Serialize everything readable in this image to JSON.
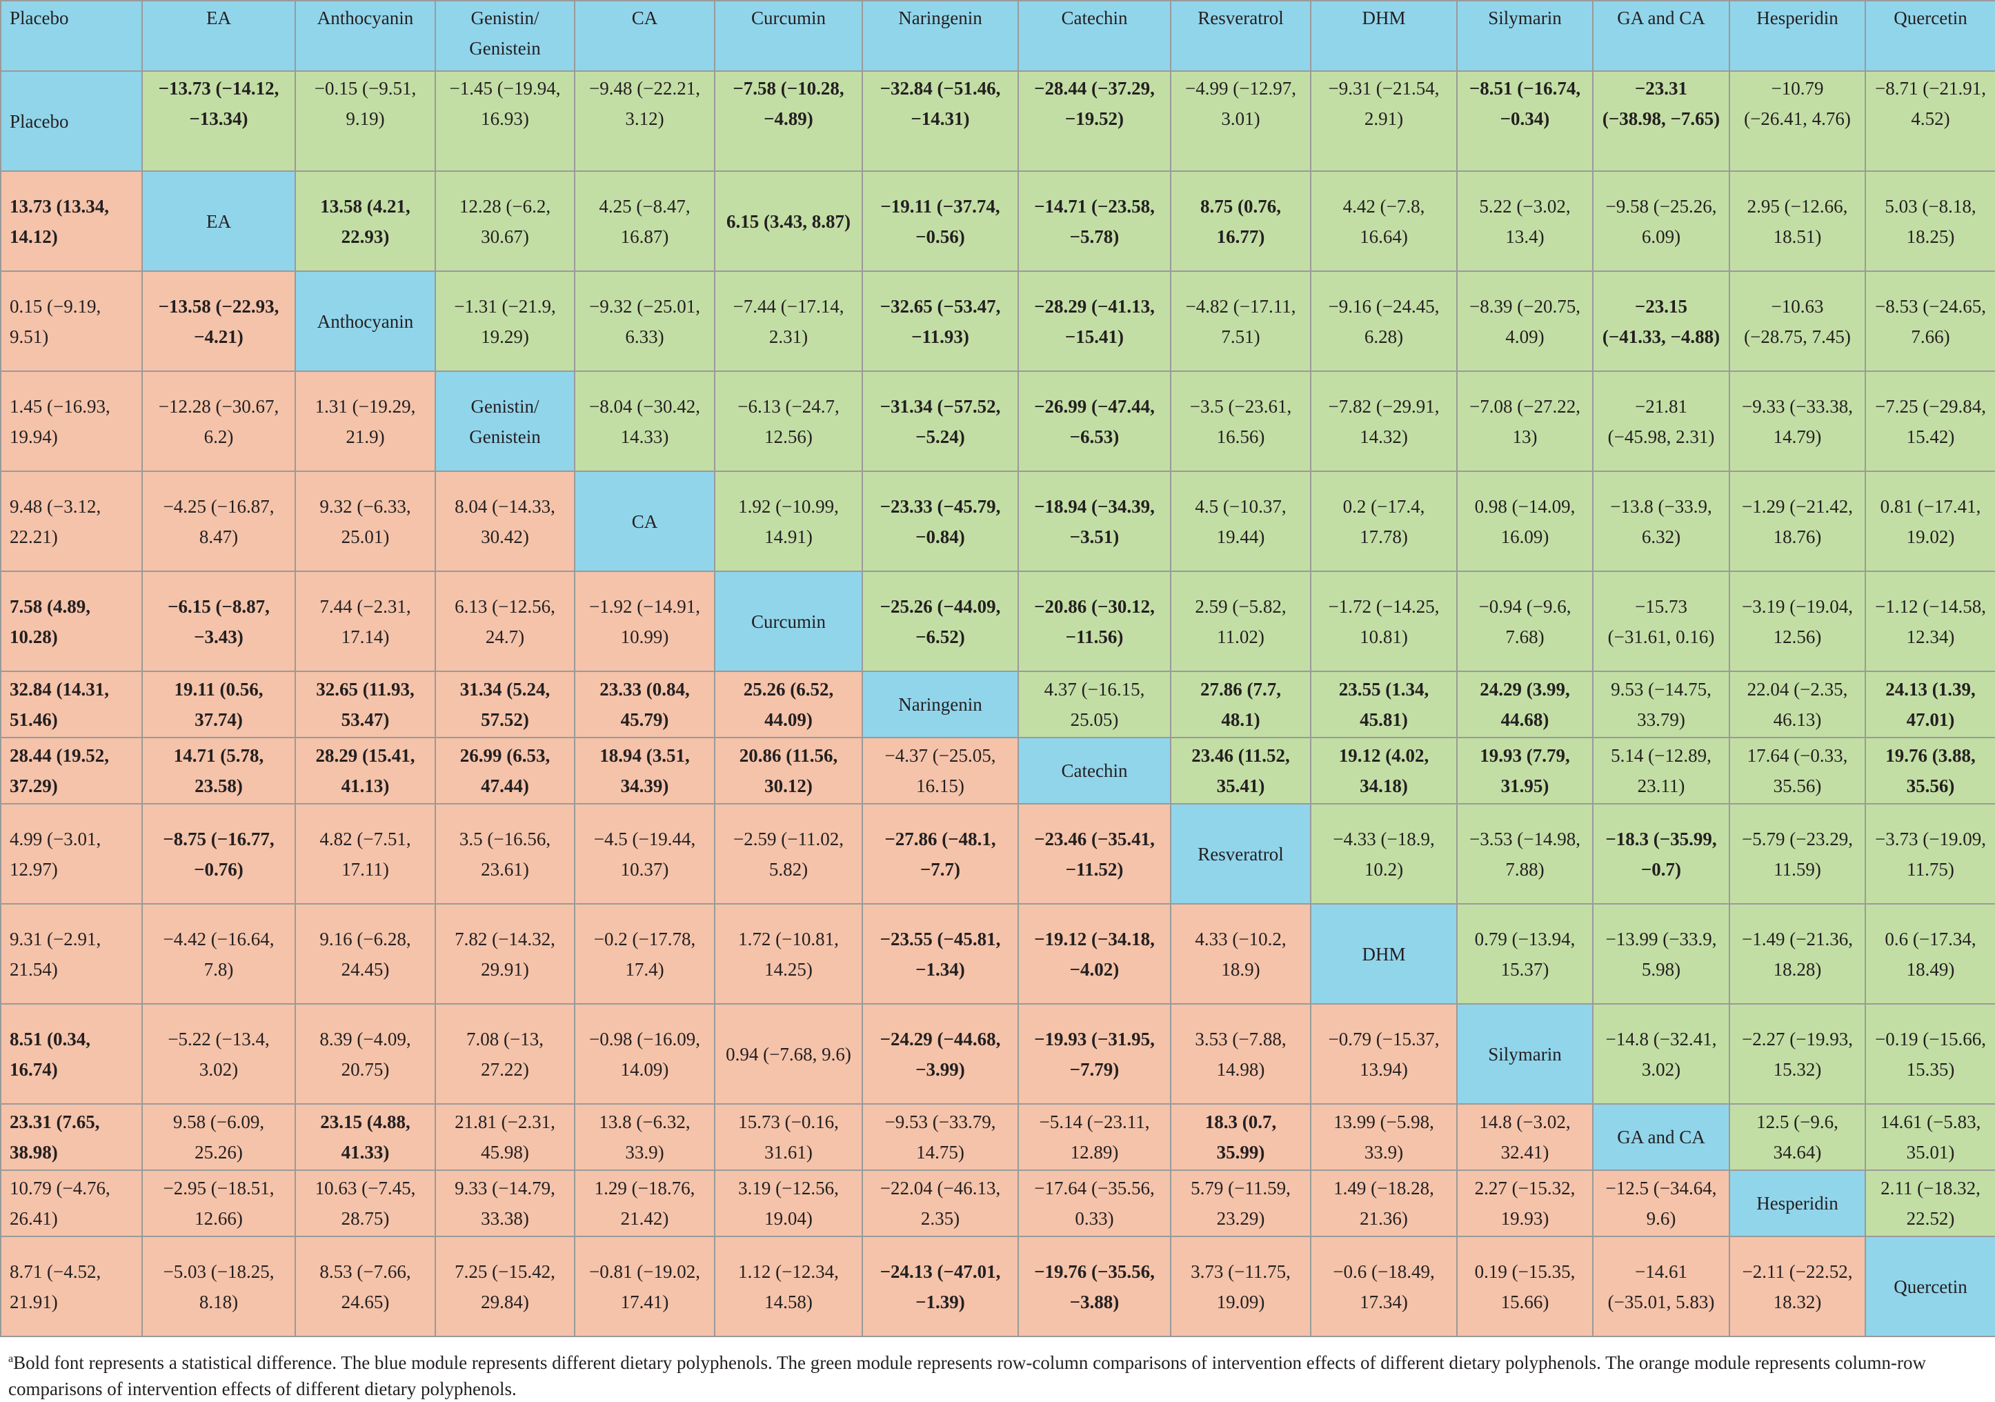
{
  "colors": {
    "diagonal": "#91d5eb",
    "upper": "#c3dea5",
    "lower": "#f4c3aa",
    "border": "#9a9a9a"
  },
  "header": [
    "Placebo",
    "EA",
    "Anthocyanin",
    "Genistin/ Genistein",
    "CA",
    "Curcumin",
    "Naringenin",
    "Catechin",
    "Resveratrol",
    "DHM",
    "Silymarin",
    "GA and CA",
    "Hesperidin",
    "Quercetin"
  ],
  "rows": [
    [
      {
        "t": "Placebo",
        "c": "blue"
      },
      {
        "t": "−13.73 (−14.12, −13.34)",
        "c": "green",
        "b": 1
      },
      {
        "t": "−0.15 (−9.51, 9.19)",
        "c": "green"
      },
      {
        "t": "−1.45 (−19.94, 16.93)",
        "c": "green"
      },
      {
        "t": "−9.48 (−22.21, 3.12)",
        "c": "green"
      },
      {
        "t": "−7.58 (−10.28, −4.89)",
        "c": "green",
        "b": 1
      },
      {
        "t": "−32.84 (−51.46, −14.31)",
        "c": "green",
        "b": 1
      },
      {
        "t": "−28.44 (−37.29, −19.52)",
        "c": "green",
        "b": 1
      },
      {
        "t": "−4.99 (−12.97, 3.01)",
        "c": "green"
      },
      {
        "t": "−9.31 (−21.54, 2.91)",
        "c": "green"
      },
      {
        "t": "−8.51 (−16.74, −0.34)",
        "c": "green",
        "b": 1
      },
      {
        "t": "−23.31 (−38.98, −7.65)",
        "c": "green",
        "b": 1
      },
      {
        "t": "−10.79 (−26.41, 4.76)",
        "c": "green"
      },
      {
        "t": "−8.71 (−21.91, 4.52)",
        "c": "green"
      }
    ],
    [
      {
        "t": "13.73 (13.34, 14.12)",
        "c": "orange",
        "b": 1
      },
      {
        "t": "EA",
        "c": "blue"
      },
      {
        "t": "13.58 (4.21, 22.93)",
        "c": "green",
        "b": 1
      },
      {
        "t": "12.28 (−6.2, 30.67)",
        "c": "green"
      },
      {
        "t": "4.25 (−8.47, 16.87)",
        "c": "green"
      },
      {
        "t": "6.15 (3.43, 8.87)",
        "c": "green",
        "b": 1
      },
      {
        "t": "−19.11 (−37.74, −0.56)",
        "c": "green",
        "b": 1
      },
      {
        "t": "−14.71 (−23.58, −5.78)",
        "c": "green",
        "b": 1
      },
      {
        "t": "8.75 (0.76, 16.77)",
        "c": "green",
        "b": 1
      },
      {
        "t": "4.42 (−7.8, 16.64)",
        "c": "green"
      },
      {
        "t": "5.22 (−3.02, 13.4)",
        "c": "green"
      },
      {
        "t": "−9.58 (−25.26, 6.09)",
        "c": "green"
      },
      {
        "t": "2.95 (−12.66, 18.51)",
        "c": "green"
      },
      {
        "t": "5.03 (−8.18, 18.25)",
        "c": "green"
      }
    ],
    [
      {
        "t": "0.15 (−9.19, 9.51)",
        "c": "orange"
      },
      {
        "t": "−13.58 (−22.93, −4.21)",
        "c": "orange",
        "b": 1
      },
      {
        "t": "Anthocyanin",
        "c": "blue"
      },
      {
        "t": "−1.31 (−21.9, 19.29)",
        "c": "green"
      },
      {
        "t": "−9.32 (−25.01, 6.33)",
        "c": "green"
      },
      {
        "t": "−7.44 (−17.14, 2.31)",
        "c": "green"
      },
      {
        "t": "−32.65 (−53.47, −11.93)",
        "c": "green",
        "b": 1
      },
      {
        "t": "−28.29 (−41.13, −15.41)",
        "c": "green",
        "b": 1
      },
      {
        "t": "−4.82 (−17.11, 7.51)",
        "c": "green"
      },
      {
        "t": "−9.16 (−24.45, 6.28)",
        "c": "green"
      },
      {
        "t": "−8.39 (−20.75, 4.09)",
        "c": "green"
      },
      {
        "t": "−23.15 (−41.33, −4.88)",
        "c": "green",
        "b": 1
      },
      {
        "t": "−10.63 (−28.75, 7.45)",
        "c": "green"
      },
      {
        "t": "−8.53 (−24.65, 7.66)",
        "c": "green"
      }
    ],
    [
      {
        "t": "1.45 (−16.93, 19.94)",
        "c": "orange"
      },
      {
        "t": "−12.28 (−30.67, 6.2)",
        "c": "orange"
      },
      {
        "t": "1.31 (−19.29, 21.9)",
        "c": "orange"
      },
      {
        "t": "Genistin/ Genistein",
        "c": "blue"
      },
      {
        "t": "−8.04 (−30.42, 14.33)",
        "c": "green"
      },
      {
        "t": "−6.13 (−24.7, 12.56)",
        "c": "green"
      },
      {
        "t": "−31.34 (−57.52, −5.24)",
        "c": "green",
        "b": 1
      },
      {
        "t": "−26.99 (−47.44, −6.53)",
        "c": "green",
        "b": 1
      },
      {
        "t": "−3.5 (−23.61, 16.56)",
        "c": "green"
      },
      {
        "t": "−7.82 (−29.91, 14.32)",
        "c": "green"
      },
      {
        "t": "−7.08 (−27.22, 13)",
        "c": "green"
      },
      {
        "t": "−21.81 (−45.98, 2.31)",
        "c": "green"
      },
      {
        "t": "−9.33 (−33.38, 14.79)",
        "c": "green"
      },
      {
        "t": "−7.25 (−29.84, 15.42)",
        "c": "green"
      }
    ],
    [
      {
        "t": "9.48 (−3.12, 22.21)",
        "c": "orange"
      },
      {
        "t": "−4.25 (−16.87, 8.47)",
        "c": "orange"
      },
      {
        "t": "9.32 (−6.33, 25.01)",
        "c": "orange"
      },
      {
        "t": "8.04 (−14.33, 30.42)",
        "c": "orange"
      },
      {
        "t": "CA",
        "c": "blue"
      },
      {
        "t": "1.92 (−10.99, 14.91)",
        "c": "green"
      },
      {
        "t": "−23.33 (−45.79, −0.84)",
        "c": "green",
        "b": 1
      },
      {
        "t": "−18.94 (−34.39, −3.51)",
        "c": "green",
        "b": 1
      },
      {
        "t": "4.5 (−10.37, 19.44)",
        "c": "green"
      },
      {
        "t": "0.2 (−17.4, 17.78)",
        "c": "green"
      },
      {
        "t": "0.98 (−14.09, 16.09)",
        "c": "green"
      },
      {
        "t": "−13.8 (−33.9, 6.32)",
        "c": "green"
      },
      {
        "t": "−1.29 (−21.42, 18.76)",
        "c": "green"
      },
      {
        "t": "0.81 (−17.41, 19.02)",
        "c": "green"
      }
    ],
    [
      {
        "t": "7.58 (4.89, 10.28)",
        "c": "orange",
        "b": 1
      },
      {
        "t": "−6.15 (−8.87, −3.43)",
        "c": "orange",
        "b": 1
      },
      {
        "t": "7.44 (−2.31, 17.14)",
        "c": "orange"
      },
      {
        "t": "6.13 (−12.56, 24.7)",
        "c": "orange"
      },
      {
        "t": "−1.92 (−14.91, 10.99)",
        "c": "orange"
      },
      {
        "t": "Curcumin",
        "c": "blue"
      },
      {
        "t": "−25.26 (−44.09, −6.52)",
        "c": "green",
        "b": 1
      },
      {
        "t": "−20.86 (−30.12, −11.56)",
        "c": "green",
        "b": 1
      },
      {
        "t": "2.59 (−5.82, 11.02)",
        "c": "green"
      },
      {
        "t": "−1.72 (−14.25, 10.81)",
        "c": "green"
      },
      {
        "t": "−0.94 (−9.6, 7.68)",
        "c": "green"
      },
      {
        "t": "−15.73 (−31.61, 0.16)",
        "c": "green"
      },
      {
        "t": "−3.19 (−19.04, 12.56)",
        "c": "green"
      },
      {
        "t": "−1.12 (−14.58, 12.34)",
        "c": "green"
      }
    ],
    [
      {
        "t": "32.84 (14.31, 51.46)",
        "c": "orange",
        "b": 1
      },
      {
        "t": "19.11 (0.56, 37.74)",
        "c": "orange",
        "b": 1
      },
      {
        "t": "32.65 (11.93, 53.47)",
        "c": "orange",
        "b": 1
      },
      {
        "t": "31.34 (5.24, 57.52)",
        "c": "orange",
        "b": 1
      },
      {
        "t": "23.33 (0.84, 45.79)",
        "c": "orange",
        "b": 1
      },
      {
        "t": "25.26 (6.52, 44.09)",
        "c": "orange",
        "b": 1
      },
      {
        "t": "Naringenin",
        "c": "blue"
      },
      {
        "t": "4.37 (−16.15, 25.05)",
        "c": "green"
      },
      {
        "t": "27.86 (7.7, 48.1)",
        "c": "green",
        "b": 1
      },
      {
        "t": "23.55 (1.34, 45.81)",
        "c": "green",
        "b": 1
      },
      {
        "t": "24.29 (3.99, 44.68)",
        "c": "green",
        "b": 1
      },
      {
        "t": "9.53 (−14.75, 33.79)",
        "c": "green"
      },
      {
        "t": "22.04 (−2.35, 46.13)",
        "c": "green"
      },
      {
        "t": "24.13 (1.39, 47.01)",
        "c": "green",
        "b": 1
      }
    ],
    [
      {
        "t": "28.44 (19.52, 37.29)",
        "c": "orange",
        "b": 1
      },
      {
        "t": "14.71 (5.78, 23.58)",
        "c": "orange",
        "b": 1
      },
      {
        "t": "28.29 (15.41, 41.13)",
        "c": "orange",
        "b": 1
      },
      {
        "t": "26.99 (6.53, 47.44)",
        "c": "orange",
        "b": 1
      },
      {
        "t": "18.94 (3.51, 34.39)",
        "c": "orange",
        "b": 1
      },
      {
        "t": "20.86 (11.56, 30.12)",
        "c": "orange",
        "b": 1
      },
      {
        "t": "−4.37 (−25.05, 16.15)",
        "c": "orange"
      },
      {
        "t": "Catechin",
        "c": "blue"
      },
      {
        "t": "23.46 (11.52, 35.41)",
        "c": "green",
        "b": 1
      },
      {
        "t": "19.12 (4.02, 34.18)",
        "c": "green",
        "b": 1
      },
      {
        "t": "19.93 (7.79, 31.95)",
        "c": "green",
        "b": 1
      },
      {
        "t": "5.14 (−12.89, 23.11)",
        "c": "green"
      },
      {
        "t": "17.64 (−0.33, 35.56)",
        "c": "green"
      },
      {
        "t": "19.76 (3.88, 35.56)",
        "c": "green",
        "b": 1
      }
    ],
    [
      {
        "t": "4.99 (−3.01, 12.97)",
        "c": "orange"
      },
      {
        "t": "−8.75 (−16.77, −0.76)",
        "c": "orange",
        "b": 1
      },
      {
        "t": "4.82 (−7.51, 17.11)",
        "c": "orange"
      },
      {
        "t": "3.5 (−16.56, 23.61)",
        "c": "orange"
      },
      {
        "t": "−4.5 (−19.44, 10.37)",
        "c": "orange"
      },
      {
        "t": "−2.59 (−11.02, 5.82)",
        "c": "orange"
      },
      {
        "t": "−27.86 (−48.1, −7.7)",
        "c": "orange",
        "b": 1
      },
      {
        "t": "−23.46 (−35.41, −11.52)",
        "c": "orange",
        "b": 1
      },
      {
        "t": "Resveratrol",
        "c": "blue"
      },
      {
        "t": "−4.33 (−18.9, 10.2)",
        "c": "green"
      },
      {
        "t": "−3.53 (−14.98, 7.88)",
        "c": "green"
      },
      {
        "t": "−18.3 (−35.99, −0.7)",
        "c": "green",
        "b": 1
      },
      {
        "t": "−5.79 (−23.29, 11.59)",
        "c": "green"
      },
      {
        "t": "−3.73 (−19.09, 11.75)",
        "c": "green"
      }
    ],
    [
      {
        "t": "9.31 (−2.91, 21.54)",
        "c": "orange"
      },
      {
        "t": "−4.42 (−16.64, 7.8)",
        "c": "orange"
      },
      {
        "t": "9.16 (−6.28, 24.45)",
        "c": "orange"
      },
      {
        "t": "7.82 (−14.32, 29.91)",
        "c": "orange"
      },
      {
        "t": "−0.2 (−17.78, 17.4)",
        "c": "orange"
      },
      {
        "t": "1.72 (−10.81, 14.25)",
        "c": "orange"
      },
      {
        "t": "−23.55 (−45.81, −1.34)",
        "c": "orange",
        "b": 1
      },
      {
        "t": "−19.12 (−34.18, −4.02)",
        "c": "orange",
        "b": 1
      },
      {
        "t": "4.33 (−10.2, 18.9)",
        "c": "orange"
      },
      {
        "t": "DHM",
        "c": "blue"
      },
      {
        "t": "0.79 (−13.94, 15.37)",
        "c": "green"
      },
      {
        "t": "−13.99 (−33.9, 5.98)",
        "c": "green"
      },
      {
        "t": "−1.49 (−21.36, 18.28)",
        "c": "green"
      },
      {
        "t": "0.6 (−17.34, 18.49)",
        "c": "green"
      }
    ],
    [
      {
        "t": "8.51 (0.34, 16.74)",
        "c": "orange",
        "b": 1
      },
      {
        "t": "−5.22 (−13.4, 3.02)",
        "c": "orange"
      },
      {
        "t": "8.39 (−4.09, 20.75)",
        "c": "orange"
      },
      {
        "t": "7.08 (−13, 27.22)",
        "c": "orange"
      },
      {
        "t": "−0.98 (−16.09, 14.09)",
        "c": "orange"
      },
      {
        "t": "0.94 (−7.68, 9.6)",
        "c": "orange"
      },
      {
        "t": "−24.29 (−44.68, −3.99)",
        "c": "orange",
        "b": 1
      },
      {
        "t": "−19.93 (−31.95, −7.79)",
        "c": "orange",
        "b": 1
      },
      {
        "t": "3.53 (−7.88, 14.98)",
        "c": "orange"
      },
      {
        "t": "−0.79 (−15.37, 13.94)",
        "c": "orange"
      },
      {
        "t": "Silymarin",
        "c": "blue"
      },
      {
        "t": "−14.8 (−32.41, 3.02)",
        "c": "green"
      },
      {
        "t": "−2.27 (−19.93, 15.32)",
        "c": "green"
      },
      {
        "t": "−0.19 (−15.66, 15.35)",
        "c": "green"
      }
    ],
    [
      {
        "t": "23.31 (7.65, 38.98)",
        "c": "orange",
        "b": 1
      },
      {
        "t": "9.58 (−6.09, 25.26)",
        "c": "orange"
      },
      {
        "t": "23.15 (4.88, 41.33)",
        "c": "orange",
        "b": 1
      },
      {
        "t": "21.81 (−2.31, 45.98)",
        "c": "orange"
      },
      {
        "t": "13.8 (−6.32, 33.9)",
        "c": "orange"
      },
      {
        "t": "15.73 (−0.16, 31.61)",
        "c": "orange"
      },
      {
        "t": "−9.53 (−33.79, 14.75)",
        "c": "orange"
      },
      {
        "t": "−5.14 (−23.11, 12.89)",
        "c": "orange"
      },
      {
        "t": "18.3 (0.7, 35.99)",
        "c": "orange",
        "b": 1
      },
      {
        "t": "13.99 (−5.98, 33.9)",
        "c": "orange"
      },
      {
        "t": "14.8 (−3.02, 32.41)",
        "c": "orange"
      },
      {
        "t": "GA and CA",
        "c": "blue"
      },
      {
        "t": "12.5 (−9.6, 34.64)",
        "c": "green"
      },
      {
        "t": "14.61 (−5.83, 35.01)",
        "c": "green"
      }
    ],
    [
      {
        "t": "10.79 (−4.76, 26.41)",
        "c": "orange"
      },
      {
        "t": "−2.95 (−18.51, 12.66)",
        "c": "orange"
      },
      {
        "t": "10.63 (−7.45, 28.75)",
        "c": "orange"
      },
      {
        "t": "9.33 (−14.79, 33.38)",
        "c": "orange"
      },
      {
        "t": "1.29 (−18.76, 21.42)",
        "c": "orange"
      },
      {
        "t": "3.19 (−12.56, 19.04)",
        "c": "orange"
      },
      {
        "t": "−22.04 (−46.13, 2.35)",
        "c": "orange"
      },
      {
        "t": "−17.64 (−35.56, 0.33)",
        "c": "orange"
      },
      {
        "t": "5.79 (−11.59, 23.29)",
        "c": "orange"
      },
      {
        "t": "1.49 (−18.28, 21.36)",
        "c": "orange"
      },
      {
        "t": "2.27 (−15.32, 19.93)",
        "c": "orange"
      },
      {
        "t": "−12.5 (−34.64, 9.6)",
        "c": "orange"
      },
      {
        "t": "Hesperidin",
        "c": "blue"
      },
      {
        "t": "2.11 (−18.32, 22.52)",
        "c": "green"
      }
    ],
    [
      {
        "t": "8.71 (−4.52, 21.91)",
        "c": "orange"
      },
      {
        "t": "−5.03 (−18.25, 8.18)",
        "c": "orange"
      },
      {
        "t": "8.53 (−7.66, 24.65)",
        "c": "orange"
      },
      {
        "t": "7.25 (−15.42, 29.84)",
        "c": "orange"
      },
      {
        "t": "−0.81 (−19.02, 17.41)",
        "c": "orange"
      },
      {
        "t": "1.12 (−12.34, 14.58)",
        "c": "orange"
      },
      {
        "t": "−24.13 (−47.01, −1.39)",
        "c": "orange",
        "b": 1
      },
      {
        "t": "−19.76 (−35.56, −3.88)",
        "c": "orange",
        "b": 1
      },
      {
        "t": "3.73 (−11.75, 19.09)",
        "c": "orange"
      },
      {
        "t": "−0.6 (−18.49, 17.34)",
        "c": "orange"
      },
      {
        "t": "0.19 (−15.35, 15.66)",
        "c": "orange"
      },
      {
        "t": "−14.61 (−35.01, 5.83)",
        "c": "orange"
      },
      {
        "t": "−2.11 (−22.52, 18.32)",
        "c": "orange"
      },
      {
        "t": "Quercetin",
        "c": "blue"
      }
    ]
  ],
  "footnote": {
    "marker": "a",
    "text": "Bold font represents a statistical difference. The blue module represents different dietary polyphenols. The green module represents row-column comparisons of intervention effects of different dietary polyphenols. The orange module represents column-row comparisons of intervention effects of different dietary polyphenols."
  }
}
